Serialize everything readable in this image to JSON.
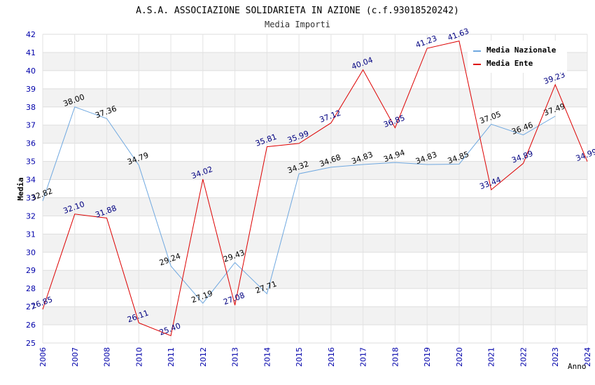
{
  "chart_data": {
    "type": "line",
    "title": "A.S.A. ASSOCIAZIONE SOLIDARIETA IN AZIONE (c.f.93018520242)",
    "subtitle": "Media Importi",
    "xlabel": "Anno",
    "ylabel": "Media",
    "ylim": [
      25,
      42
    ],
    "grid": true,
    "legend": "top-right",
    "x": [
      "2006",
      "2007",
      "2008",
      "2010",
      "2011",
      "2012",
      "2013",
      "2014",
      "2015",
      "2016",
      "2017",
      "2018",
      "2019",
      "2020",
      "2021",
      "2022",
      "2023",
      "2024"
    ],
    "series": [
      {
        "name": "Media Nazionale",
        "color": "#6fa8e0",
        "values": [
          32.82,
          38.0,
          37.36,
          34.79,
          29.24,
          27.19,
          29.43,
          27.71,
          34.32,
          34.68,
          34.83,
          34.94,
          34.83,
          34.85,
          37.05,
          36.46,
          37.49,
          null
        ],
        "labels": [
          "32.82",
          "38.00",
          "37.36",
          "34.79",
          "29.24",
          "27.19",
          "29.43",
          "27.71",
          "34.32",
          "34.68",
          "34.83",
          "34.94",
          "34.83",
          "34.85",
          "37.05",
          "36.46",
          "37.49",
          ""
        ]
      },
      {
        "name": "Media Ente",
        "color": "#dd0000",
        "values": [
          26.85,
          32.1,
          31.88,
          26.11,
          25.4,
          34.02,
          27.08,
          35.81,
          35.99,
          37.12,
          40.04,
          36.85,
          41.23,
          41.63,
          33.44,
          34.89,
          39.23,
          34.99
        ],
        "labels": [
          "26.85",
          "32.10",
          "31.88",
          "26.11",
          "25.40",
          "34.02",
          "27.08",
          "35.81",
          "35.99",
          "37.12",
          "40.04",
          "36.85",
          "41.23",
          "41.63",
          "33.44",
          "34.89",
          "39.23",
          "34.99"
        ]
      }
    ]
  }
}
